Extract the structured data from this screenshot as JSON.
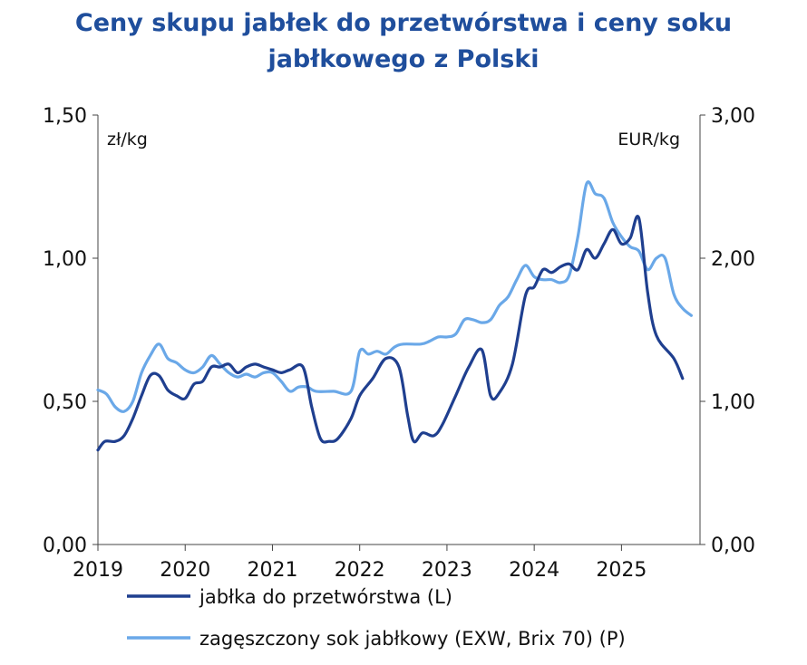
{
  "chart_data": {
    "type": "line",
    "title_lines": [
      "Ceny skupu jabłek do przetwórstwa i ceny soku",
      "jabłkowego z Polski"
    ],
    "x_labels": [
      "2019",
      "2020",
      "2021",
      "2022",
      "2023",
      "2024",
      "2025"
    ],
    "x_range": [
      2019,
      2025.9
    ],
    "left_axis": {
      "unit": "zł/kg",
      "range": [
        0,
        1.5
      ],
      "ticks": [
        0,
        0.5,
        1.0,
        1.5
      ],
      "tick_labels": [
        "0,00",
        "0,50",
        "1,00",
        "1,50"
      ]
    },
    "right_axis": {
      "unit": "EUR/kg",
      "range": [
        0,
        3.0
      ],
      "ticks": [
        0,
        1.0,
        2.0,
        3.0
      ],
      "tick_labels": [
        "0,00",
        "1,00",
        "2,00",
        "3,00"
      ]
    },
    "series": [
      {
        "name": "jabłka do przetwórstwa (L)",
        "axis": "left",
        "color": "#1f3f8f",
        "points": [
          [
            2019.0,
            0.33
          ],
          [
            2019.08,
            0.36
          ],
          [
            2019.2,
            0.36
          ],
          [
            2019.3,
            0.38
          ],
          [
            2019.4,
            0.44
          ],
          [
            2019.5,
            0.52
          ],
          [
            2019.6,
            0.59
          ],
          [
            2019.7,
            0.59
          ],
          [
            2019.8,
            0.54
          ],
          [
            2019.9,
            0.52
          ],
          [
            2020.0,
            0.51
          ],
          [
            2020.1,
            0.56
          ],
          [
            2020.2,
            0.57
          ],
          [
            2020.3,
            0.62
          ],
          [
            2020.4,
            0.62
          ],
          [
            2020.5,
            0.63
          ],
          [
            2020.6,
            0.6
          ],
          [
            2020.7,
            0.62
          ],
          [
            2020.8,
            0.63
          ],
          [
            2020.9,
            0.62
          ],
          [
            2021.0,
            0.61
          ],
          [
            2021.1,
            0.6
          ],
          [
            2021.2,
            0.61
          ],
          [
            2021.35,
            0.62
          ],
          [
            2021.45,
            0.48
          ],
          [
            2021.55,
            0.37
          ],
          [
            2021.65,
            0.36
          ],
          [
            2021.75,
            0.37
          ],
          [
            2021.9,
            0.44
          ],
          [
            2022.0,
            0.52
          ],
          [
            2022.15,
            0.58
          ],
          [
            2022.3,
            0.65
          ],
          [
            2022.45,
            0.62
          ],
          [
            2022.55,
            0.45
          ],
          [
            2022.62,
            0.36
          ],
          [
            2022.72,
            0.39
          ],
          [
            2022.85,
            0.38
          ],
          [
            2022.95,
            0.42
          ],
          [
            2023.1,
            0.52
          ],
          [
            2023.25,
            0.62
          ],
          [
            2023.4,
            0.68
          ],
          [
            2023.5,
            0.52
          ],
          [
            2023.6,
            0.53
          ],
          [
            2023.75,
            0.63
          ],
          [
            2023.9,
            0.87
          ],
          [
            2024.0,
            0.9
          ],
          [
            2024.1,
            0.96
          ],
          [
            2024.2,
            0.95
          ],
          [
            2024.3,
            0.97
          ],
          [
            2024.4,
            0.98
          ],
          [
            2024.5,
            0.96
          ],
          [
            2024.6,
            1.03
          ],
          [
            2024.7,
            1.0
          ],
          [
            2024.8,
            1.05
          ],
          [
            2024.9,
            1.1
          ],
          [
            2025.0,
            1.05
          ],
          [
            2025.1,
            1.07
          ],
          [
            2025.2,
            1.14
          ],
          [
            2025.3,
            0.88
          ],
          [
            2025.4,
            0.73
          ],
          [
            2025.6,
            0.65
          ],
          [
            2025.7,
            0.58
          ]
        ]
      },
      {
        "name": "zagęszczony sok jabłkowy (EXW, Brix 70) (P)",
        "axis": "right",
        "color": "#6aa8e8",
        "points": [
          [
            2019.0,
            1.08
          ],
          [
            2019.1,
            1.05
          ],
          [
            2019.2,
            0.96
          ],
          [
            2019.3,
            0.93
          ],
          [
            2019.4,
            1.0
          ],
          [
            2019.5,
            1.2
          ],
          [
            2019.6,
            1.32
          ],
          [
            2019.7,
            1.4
          ],
          [
            2019.8,
            1.3
          ],
          [
            2019.9,
            1.27
          ],
          [
            2020.0,
            1.22
          ],
          [
            2020.1,
            1.2
          ],
          [
            2020.2,
            1.24
          ],
          [
            2020.3,
            1.32
          ],
          [
            2020.4,
            1.26
          ],
          [
            2020.5,
            1.2
          ],
          [
            2020.6,
            1.17
          ],
          [
            2020.7,
            1.19
          ],
          [
            2020.8,
            1.17
          ],
          [
            2020.9,
            1.2
          ],
          [
            2021.0,
            1.2
          ],
          [
            2021.1,
            1.14
          ],
          [
            2021.2,
            1.07
          ],
          [
            2021.3,
            1.1
          ],
          [
            2021.4,
            1.1
          ],
          [
            2021.5,
            1.07
          ],
          [
            2021.7,
            1.07
          ],
          [
            2021.9,
            1.07
          ],
          [
            2022.0,
            1.35
          ],
          [
            2022.1,
            1.33
          ],
          [
            2022.2,
            1.35
          ],
          [
            2022.3,
            1.33
          ],
          [
            2022.4,
            1.38
          ],
          [
            2022.5,
            1.4
          ],
          [
            2022.7,
            1.4
          ],
          [
            2022.8,
            1.42
          ],
          [
            2022.9,
            1.45
          ],
          [
            2023.0,
            1.45
          ],
          [
            2023.1,
            1.47
          ],
          [
            2023.2,
            1.57
          ],
          [
            2023.3,
            1.57
          ],
          [
            2023.4,
            1.55
          ],
          [
            2023.5,
            1.57
          ],
          [
            2023.6,
            1.67
          ],
          [
            2023.7,
            1.73
          ],
          [
            2023.8,
            1.85
          ],
          [
            2023.9,
            1.95
          ],
          [
            2024.0,
            1.87
          ],
          [
            2024.1,
            1.85
          ],
          [
            2024.2,
            1.85
          ],
          [
            2024.3,
            1.83
          ],
          [
            2024.4,
            1.88
          ],
          [
            2024.5,
            2.15
          ],
          [
            2024.6,
            2.52
          ],
          [
            2024.7,
            2.45
          ],
          [
            2024.8,
            2.42
          ],
          [
            2024.9,
            2.25
          ],
          [
            2025.0,
            2.15
          ],
          [
            2025.1,
            2.08
          ],
          [
            2025.2,
            2.05
          ],
          [
            2025.3,
            1.92
          ],
          [
            2025.4,
            2.0
          ],
          [
            2025.5,
            2.0
          ],
          [
            2025.6,
            1.75
          ],
          [
            2025.7,
            1.65
          ],
          [
            2025.8,
            1.6
          ]
        ]
      }
    ]
  }
}
